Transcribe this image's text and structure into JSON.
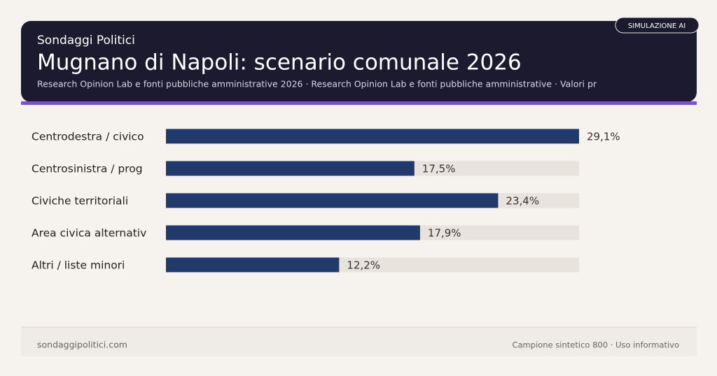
{
  "chart_data": {
    "type": "bar",
    "orientation": "horizontal",
    "brand": "Sondaggi Politici",
    "title": "Mugnano di Napoli: scenario comunale 2026",
    "subtitle": "Research Opinion Lab e fonti pubbliche amministrative 2026 · Research Opinion Lab e fonti pubbliche amministrative · Valori pr",
    "badge": "SIMULAZIONE AI",
    "categories": [
      "Centrodestra / civico",
      "Centrosinistra / prog",
      "Civiche territoriali",
      "Area civica alternativ",
      "Altri / liste minori"
    ],
    "values": [
      29.1,
      17.5,
      23.4,
      17.9,
      12.2
    ],
    "value_labels": [
      "29,1%",
      "17,5%",
      "23,4%",
      "17,9%",
      "12,2%"
    ],
    "color": "#1f3a6b",
    "track_color": "#e8e3dd",
    "xlim": [
      0,
      29.1
    ],
    "footer_left": "sondaggipolitici.com",
    "footer_right": "Campione sintetico 800 · Uso informativo"
  }
}
